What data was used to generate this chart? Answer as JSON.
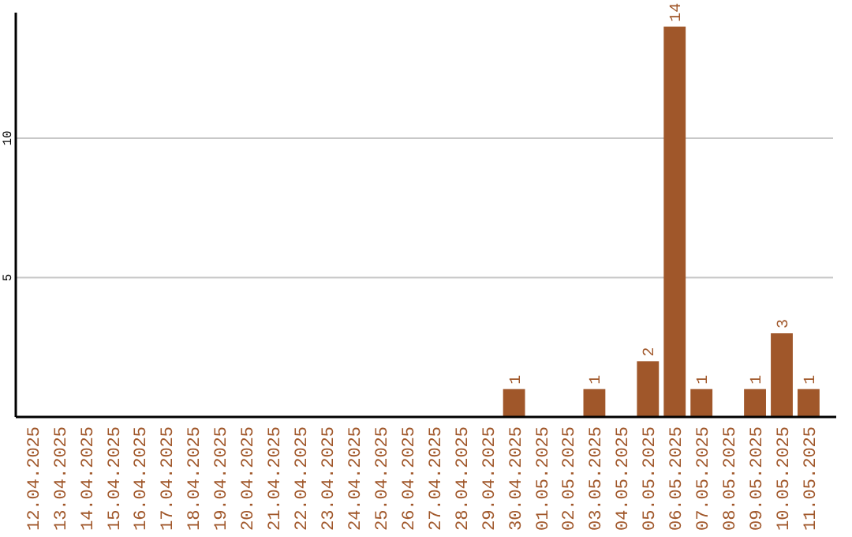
{
  "chart_data": {
    "type": "bar",
    "categories": [
      "12.04.2025",
      "13.04.2025",
      "14.04.2025",
      "15.04.2025",
      "16.04.2025",
      "17.04.2025",
      "18.04.2025",
      "19.04.2025",
      "20.04.2025",
      "21.04.2025",
      "22.04.2025",
      "23.04.2025",
      "24.04.2025",
      "25.04.2025",
      "26.04.2025",
      "27.04.2025",
      "28.04.2025",
      "29.04.2025",
      "30.04.2025",
      "01.05.2025",
      "02.05.2025",
      "03.05.2025",
      "04.05.2025",
      "05.05.2025",
      "06.05.2025",
      "07.05.2025",
      "08.05.2025",
      "09.05.2025",
      "10.05.2025",
      "11.05.2025"
    ],
    "values": [
      0,
      0,
      0,
      0,
      0,
      0,
      0,
      0,
      0,
      0,
      0,
      0,
      0,
      0,
      0,
      0,
      0,
      0,
      1,
      0,
      0,
      1,
      0,
      2,
      14,
      1,
      0,
      1,
      3,
      1
    ],
    "value_labels": [
      null,
      null,
      null,
      null,
      null,
      null,
      null,
      null,
      null,
      null,
      null,
      null,
      null,
      null,
      null,
      null,
      null,
      null,
      "1",
      null,
      null,
      "1",
      null,
      "2",
      "14",
      "1",
      null,
      "1",
      "3",
      "1"
    ],
    "color": "#a0572a",
    "ylim": [
      0,
      14.5
    ],
    "yticks": [
      5,
      10
    ],
    "grid": "y"
  }
}
